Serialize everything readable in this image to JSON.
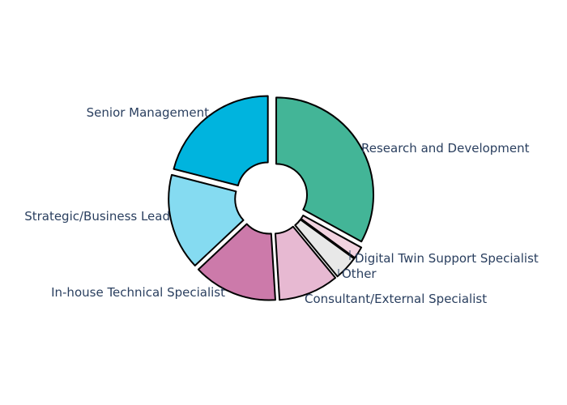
{
  "chart_data": {
    "type": "pie",
    "hole": true,
    "categories": [
      "Research and Development",
      "Digital Twin Support Specialist",
      "Other",
      "Consultant/External Specialist",
      "In-house Technical Specialist",
      "Strategic/Business Lead",
      "Senior Management"
    ],
    "values": [
      33,
      2,
      4,
      10,
      14,
      16,
      21
    ],
    "colors": [
      "#43b597",
      "#f2d3e0",
      "#e8e8e8",
      "#e7b9d2",
      "#cc7aaa",
      "#85dbf1",
      "#00b4de"
    ],
    "legend": "none"
  }
}
